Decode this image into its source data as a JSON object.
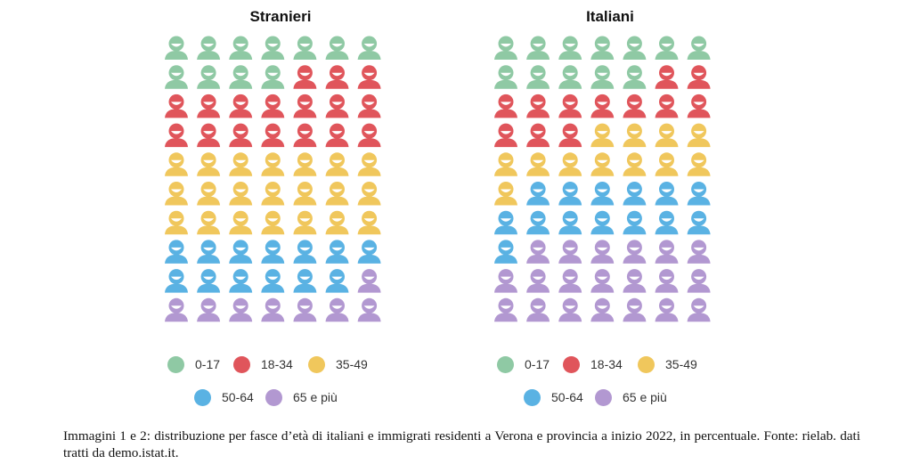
{
  "chart_data": [
    {
      "type": "pictogram",
      "title": "Stranieri",
      "unit": "%",
      "categories": [
        "0-17",
        "18-34",
        "35-49",
        "50-64",
        "65 e più"
      ],
      "values": [
        16,
        24,
        30,
        18,
        12
      ],
      "colors": [
        "#8fc9a4",
        "#e0555b",
        "#f0c75c",
        "#5ab2e3",
        "#b298d1"
      ]
    },
    {
      "type": "pictogram",
      "title": "Italiani",
      "unit": "%",
      "categories": [
        "0-17",
        "18-34",
        "35-49",
        "50-64",
        "65 e più"
      ],
      "values": [
        15,
        15,
        16,
        18,
        26
      ],
      "colors": [
        "#8fc9a4",
        "#e0555b",
        "#f0c75c",
        "#5ab2e3",
        "#b298d1"
      ]
    }
  ],
  "caption": "Immagini 1 e 2: distribuzione per fasce d’età di italiani e immigrati residenti a Verona e provincia a inizio 2022, in percentuale. Fonte: rielab. dati tratti da demo.istat.it."
}
